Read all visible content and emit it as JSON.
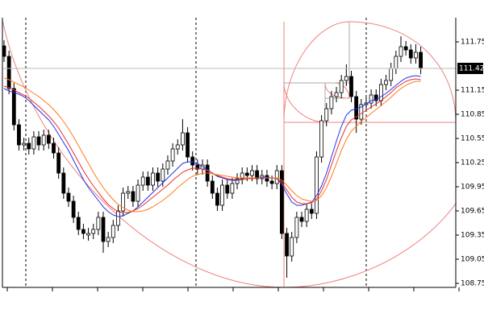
{
  "chart_data": {
    "type": "candlestick",
    "ylim": [
      108.7,
      112.05
    ],
    "yticks": [
      111.75,
      111.15,
      110.85,
      110.55,
      110.25,
      109.95,
      109.65,
      109.35,
      109.05,
      108.75
    ],
    "current_price": 111.42,
    "up_color": "#ffffff",
    "down_color": "#000000",
    "open": [
      111.7,
      111.57,
      111.17,
      110.72,
      110.47,
      110.49,
      110.42,
      110.57,
      110.47,
      110.59,
      110.49,
      110.37,
      110.12,
      109.87,
      109.77,
      109.57,
      109.42,
      109.35,
      109.37,
      109.42,
      109.57,
      109.27,
      109.32,
      109.47,
      109.65,
      109.87,
      109.89,
      109.77,
      109.97,
      110.07,
      109.97,
      110.12,
      110.02,
      110.17,
      110.27,
      110.42,
      110.47,
      110.62,
      110.32,
      110.22,
      110.17,
      110.22,
      110.02,
      109.87,
      109.72,
      109.97,
      109.87,
      109.99,
      110.05,
      110.12,
      110.09,
      110.15,
      110.05,
      110.09,
      110.02,
      109.99,
      110.15,
      109.37,
      109.09,
      109.32,
      109.57,
      109.52,
      109.67,
      109.62,
      110.32,
      110.77,
      110.92,
      111.07,
      111.12,
      111.27,
      111.32,
      111.07,
      110.79,
      110.97,
      110.99,
      111.09,
      111.02,
      111.22,
      111.27,
      111.42,
      111.57,
      111.69,
      111.65,
      111.55,
      111.62
    ],
    "high": [
      111.77,
      111.64,
      111.24,
      110.79,
      110.56,
      110.56,
      110.64,
      110.64,
      110.66,
      110.66,
      110.56,
      110.44,
      110.19,
      109.94,
      109.84,
      109.64,
      109.49,
      109.44,
      109.49,
      109.64,
      109.64,
      109.39,
      109.54,
      109.72,
      109.94,
      109.96,
      109.96,
      110.04,
      110.14,
      110.14,
      110.19,
      110.19,
      110.24,
      110.34,
      110.49,
      110.54,
      110.79,
      110.69,
      110.39,
      110.29,
      110.29,
      110.29,
      110.09,
      109.94,
      110.04,
      110.04,
      110.06,
      110.12,
      110.19,
      110.19,
      110.22,
      110.22,
      110.16,
      110.16,
      110.09,
      110.22,
      110.22,
      109.44,
      109.39,
      109.64,
      109.64,
      109.74,
      109.74,
      110.39,
      110.84,
      110.99,
      111.14,
      111.19,
      111.34,
      111.47,
      111.39,
      111.14,
      111.04,
      111.06,
      111.16,
      111.16,
      111.29,
      111.34,
      111.49,
      111.64,
      111.82,
      111.76,
      111.72,
      111.72,
      111.69
    ],
    "low": [
      111.5,
      111.1,
      110.65,
      110.4,
      110.4,
      110.35,
      110.35,
      110.4,
      110.4,
      110.42,
      110.3,
      110.05,
      109.8,
      109.7,
      109.5,
      109.35,
      109.3,
      109.28,
      109.3,
      109.35,
      109.13,
      109.2,
      109.25,
      109.4,
      109.58,
      109.8,
      109.7,
      109.7,
      109.9,
      109.9,
      109.9,
      109.95,
      109.95,
      110.1,
      110.2,
      110.35,
      110.4,
      110.25,
      110.15,
      110.1,
      110.1,
      109.95,
      109.8,
      109.65,
      109.65,
      109.8,
      109.8,
      109.92,
      109.98,
      110.02,
      110.02,
      109.98,
      109.98,
      109.95,
      109.92,
      109.92,
      109.3,
      108.82,
      109.02,
      109.25,
      109.45,
      109.45,
      109.55,
      109.55,
      110.25,
      110.7,
      110.85,
      111.0,
      111.05,
      111.2,
      111.0,
      110.62,
      110.72,
      110.9,
      110.92,
      110.95,
      110.95,
      111.15,
      111.2,
      111.35,
      111.5,
      111.58,
      111.48,
      111.48,
      111.35
    ],
    "close": [
      111.57,
      111.17,
      110.72,
      110.47,
      110.49,
      110.42,
      110.57,
      110.47,
      110.59,
      110.49,
      110.37,
      110.12,
      109.87,
      109.77,
      109.57,
      109.42,
      109.37,
      109.37,
      109.42,
      109.57,
      109.27,
      109.32,
      109.47,
      109.65,
      109.87,
      109.89,
      109.77,
      109.97,
      110.07,
      109.97,
      110.12,
      110.02,
      110.17,
      110.27,
      110.42,
      110.47,
      110.62,
      110.32,
      110.22,
      110.17,
      110.22,
      110.02,
      109.87,
      109.72,
      109.97,
      109.87,
      109.99,
      110.05,
      110.12,
      110.09,
      110.15,
      110.05,
      110.09,
      110.02,
      109.99,
      110.15,
      109.37,
      109.09,
      109.32,
      109.57,
      109.52,
      109.67,
      109.62,
      110.32,
      110.77,
      110.92,
      111.07,
      111.12,
      111.27,
      111.32,
      111.07,
      110.79,
      110.97,
      110.99,
      111.09,
      111.02,
      111.22,
      111.27,
      111.42,
      111.57,
      111.69,
      111.65,
      111.55,
      111.62,
      111.42
    ],
    "series": [
      {
        "color": "#2233ee",
        "values": [
          111.17,
          111.14,
          111.12,
          111.1,
          111.07,
          111.02,
          110.96,
          110.9,
          110.84,
          110.78,
          110.7,
          110.6,
          110.5,
          110.4,
          110.28,
          110.16,
          110.04,
          109.94,
          109.86,
          109.78,
          109.7,
          109.64,
          109.6,
          109.58,
          109.59,
          109.62,
          109.65,
          109.7,
          109.76,
          109.82,
          109.88,
          109.94,
          110.0,
          110.06,
          110.12,
          110.18,
          110.24,
          110.26,
          110.26,
          110.24,
          110.2,
          110.16,
          110.12,
          110.08,
          110.06,
          110.04,
          110.03,
          110.03,
          110.04,
          110.05,
          110.06,
          110.06,
          110.07,
          110.07,
          110.06,
          110.05,
          109.98,
          109.86,
          109.76,
          109.72,
          109.72,
          109.74,
          109.76,
          109.84,
          109.96,
          110.12,
          110.32,
          110.52,
          110.7,
          110.84,
          110.9,
          110.92,
          110.94,
          110.98,
          111.02,
          111.03,
          111.07,
          111.11,
          111.16,
          111.21,
          111.26,
          111.3,
          111.32,
          111.33,
          111.32
        ]
      },
      {
        "color": "#e8302a",
        "values": [
          111.2,
          111.18,
          111.15,
          111.12,
          111.09,
          111.05,
          111.0,
          110.95,
          110.89,
          110.83,
          110.76,
          110.68,
          110.58,
          110.48,
          110.37,
          110.26,
          110.15,
          110.05,
          109.96,
          109.88,
          109.8,
          109.73,
          109.68,
          109.64,
          109.63,
          109.63,
          109.65,
          109.68,
          109.72,
          109.77,
          109.82,
          109.87,
          109.92,
          109.97,
          110.03,
          110.08,
          110.13,
          110.16,
          110.18,
          110.18,
          110.17,
          110.15,
          110.12,
          110.09,
          110.07,
          110.05,
          110.04,
          110.04,
          110.04,
          110.05,
          110.05,
          110.06,
          110.06,
          110.06,
          110.06,
          110.05,
          110.0,
          109.91,
          109.82,
          109.76,
          109.74,
          109.74,
          109.75,
          109.8,
          109.9,
          110.04,
          110.22,
          110.4,
          110.56,
          110.7,
          110.78,
          110.82,
          110.86,
          110.9,
          110.94,
          110.98,
          111.02,
          111.07,
          111.12,
          111.18,
          111.22,
          111.26,
          111.28,
          111.29,
          111.28
        ]
      },
      {
        "color": "#ff7a1a",
        "values": [
          111.3,
          111.28,
          111.25,
          111.22,
          111.19,
          111.15,
          111.11,
          111.07,
          111.02,
          110.97,
          110.91,
          110.84,
          110.76,
          110.67,
          110.57,
          110.46,
          110.35,
          110.24,
          110.13,
          110.03,
          109.94,
          109.86,
          109.79,
          109.73,
          109.69,
          109.66,
          109.64,
          109.64,
          109.65,
          109.67,
          109.7,
          109.74,
          109.78,
          109.83,
          109.88,
          109.94,
          109.99,
          110.04,
          110.08,
          110.1,
          110.12,
          110.12,
          110.11,
          110.1,
          110.09,
          110.08,
          110.07,
          110.06,
          110.06,
          110.06,
          110.06,
          110.06,
          110.06,
          110.06,
          110.06,
          110.06,
          110.03,
          109.97,
          109.9,
          109.84,
          109.8,
          109.78,
          109.77,
          109.78,
          109.84,
          109.94,
          110.08,
          110.24,
          110.4,
          110.54,
          110.64,
          110.7,
          110.76,
          110.81,
          110.86,
          110.91,
          110.96,
          111.01,
          111.06,
          111.12,
          111.17,
          111.21,
          111.24,
          111.26,
          111.26
        ]
      }
    ]
  }
}
